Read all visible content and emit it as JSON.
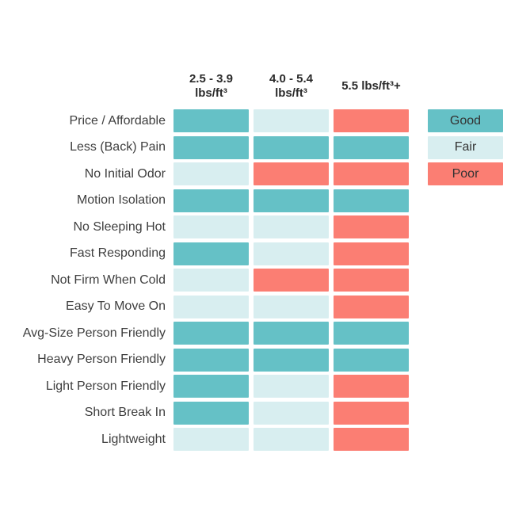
{
  "chart_data": {
    "type": "heatmap",
    "title": "",
    "xlabel": "",
    "ylabel": "",
    "grid": false,
    "legend_position": "right",
    "columns": [
      [
        "2.5 - 3.9",
        "lbs/ft³"
      ],
      [
        "4.0 - 5.4",
        "lbs/ft³"
      ],
      [
        "5.5 lbs/ft³+",
        ""
      ]
    ],
    "rows": [
      "Price / Affordable",
      "Less (Back) Pain",
      "No Initial Odor",
      "Motion Isolation",
      "No Sleeping Hot",
      "Fast Responding",
      "Not Firm When Cold",
      "Easy To Move On",
      "Avg-Size Person Friendly",
      "Heavy Person Friendly",
      "Light Person Friendly",
      "Short Break In",
      "Lightweight"
    ],
    "values": [
      [
        "Good",
        "Fair",
        "Poor"
      ],
      [
        "Good",
        "Good",
        "Good"
      ],
      [
        "Fair",
        "Poor",
        "Poor"
      ],
      [
        "Good",
        "Good",
        "Good"
      ],
      [
        "Fair",
        "Fair",
        "Poor"
      ],
      [
        "Good",
        "Fair",
        "Poor"
      ],
      [
        "Fair",
        "Poor",
        "Poor"
      ],
      [
        "Fair",
        "Fair",
        "Poor"
      ],
      [
        "Good",
        "Good",
        "Good"
      ],
      [
        "Good",
        "Good",
        "Good"
      ],
      [
        "Good",
        "Fair",
        "Poor"
      ],
      [
        "Good",
        "Fair",
        "Poor"
      ],
      [
        "Fair",
        "Fair",
        "Poor"
      ]
    ],
    "legend": [
      "Good",
      "Fair",
      "Poor"
    ],
    "colors": {
      "Good": "#65c1c6",
      "Fair": "#d8eef0",
      "Poor": "#fb7e73"
    }
  }
}
